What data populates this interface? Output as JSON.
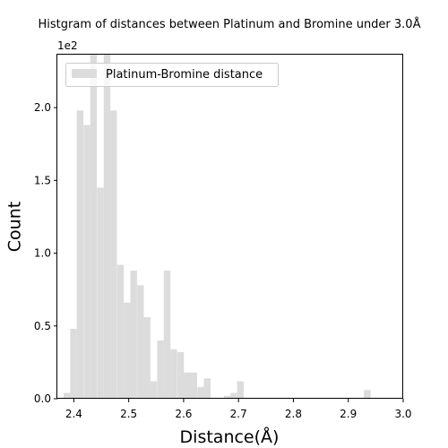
{
  "chart_data": {
    "type": "bar",
    "title": "Histgram of distances between Platinum and Bromine under 3.0Å",
    "xlabel": "Distance(Å)",
    "ylabel": "Count",
    "y_offset_label": "1e2",
    "xlim": [
      2.37,
      3.0
    ],
    "ylim": [
      0,
      2.37
    ],
    "xticks": [
      2.4,
      2.5,
      2.6,
      2.7,
      2.8,
      2.9,
      3.0
    ],
    "xtick_labels": [
      "2.4",
      "2.5",
      "2.6",
      "2.7",
      "2.8",
      "2.9",
      "3.0"
    ],
    "yticks": [
      0.0,
      0.5,
      1.0,
      1.5,
      2.0
    ],
    "ytick_labels": [
      "0.0",
      "0.5",
      "1.0",
      "1.5",
      "2.0"
    ],
    "bin_width": 0.01215,
    "series": [
      {
        "name": "Platinum-Bromine distance",
        "color": "#dcdcdc",
        "bins": [
          {
            "x": 2.3875,
            "value": 0.04
          },
          {
            "x": 2.3995,
            "value": 0.48
          },
          {
            "x": 2.4115,
            "value": 1.98
          },
          {
            "x": 2.424,
            "value": 1.88
          },
          {
            "x": 2.436,
            "value": 2.37
          },
          {
            "x": 2.4485,
            "value": 1.45
          },
          {
            "x": 2.4605,
            "value": 2.37
          },
          {
            "x": 2.4725,
            "value": 1.98
          },
          {
            "x": 2.485,
            "value": 0.92
          },
          {
            "x": 2.497,
            "value": 0.66
          },
          {
            "x": 2.509,
            "value": 0.88
          },
          {
            "x": 2.5215,
            "value": 0.78
          },
          {
            "x": 2.5335,
            "value": 0.56
          },
          {
            "x": 2.5455,
            "value": 0.12
          },
          {
            "x": 2.558,
            "value": 0.4
          },
          {
            "x": 2.57,
            "value": 0.88
          },
          {
            "x": 2.582,
            "value": 0.34
          },
          {
            "x": 2.5945,
            "value": 0.32
          },
          {
            "x": 2.6065,
            "value": 0.18
          },
          {
            "x": 2.6185,
            "value": 0.18
          },
          {
            "x": 2.631,
            "value": 0.08
          },
          {
            "x": 2.643,
            "value": 0.14
          },
          {
            "x": 2.6795,
            "value": 0.02
          },
          {
            "x": 2.6915,
            "value": 0.04
          },
          {
            "x": 2.7035,
            "value": 0.12
          },
          {
            "x": 2.9345,
            "value": 0.06
          }
        ]
      }
    ],
    "legend": {
      "placement": "upper-left",
      "label": "Platinum-Bromine distance"
    }
  }
}
